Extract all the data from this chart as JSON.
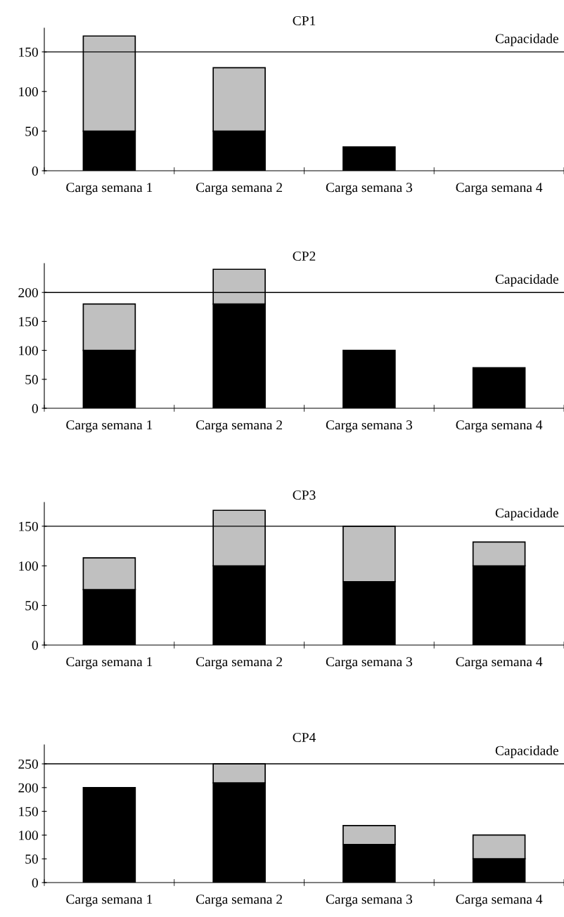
{
  "chart_data": [
    {
      "type": "bar",
      "title": "CP1",
      "stacked": true,
      "categories": [
        "Carga semana 1",
        "Carga semana 2",
        "Carga semana 3",
        "Carga semana 4"
      ],
      "series": [
        {
          "color": "#000000",
          "values": [
            50,
            50,
            30,
            null
          ]
        },
        {
          "color": "#c0c0c0",
          "values": [
            120,
            80,
            null,
            null
          ]
        }
      ],
      "ylim": [
        0,
        180
      ],
      "yticks": [
        0,
        50,
        100,
        150
      ],
      "grid": false,
      "legend": false,
      "ref_lines": [
        {
          "axis": "y",
          "value": 150,
          "label": "Capacidade",
          "color": "#000000"
        }
      ]
    },
    {
      "type": "bar",
      "title": "CP2",
      "stacked": true,
      "categories": [
        "Carga semana 1",
        "Carga semana 2",
        "Carga semana 3",
        "Carga semana 4"
      ],
      "series": [
        {
          "color": "#000000",
          "values": [
            100,
            180,
            100,
            70
          ]
        },
        {
          "color": "#c0c0c0",
          "values": [
            80,
            60,
            null,
            null
          ]
        }
      ],
      "ylim": [
        0,
        250
      ],
      "yticks": [
        0,
        50,
        100,
        150,
        200
      ],
      "grid": false,
      "legend": false,
      "ref_lines": [
        {
          "axis": "y",
          "value": 200,
          "label": "Capacidade",
          "color": "#000000"
        }
      ]
    },
    {
      "type": "bar",
      "title": "CP3",
      "stacked": true,
      "categories": [
        "Carga semana 1",
        "Carga semana 2",
        "Carga semana 3",
        "Carga semana 4"
      ],
      "series": [
        {
          "color": "#000000",
          "values": [
            70,
            100,
            80,
            100
          ]
        },
        {
          "color": "#c0c0c0",
          "values": [
            40,
            70,
            70,
            30
          ]
        }
      ],
      "ylim": [
        0,
        180
      ],
      "yticks": [
        0,
        50,
        100,
        150
      ],
      "grid": false,
      "legend": false,
      "ref_lines": [
        {
          "axis": "y",
          "value": 150,
          "label": "Capacidade",
          "color": "#000000"
        }
      ]
    },
    {
      "type": "bar",
      "title": "CP4",
      "stacked": true,
      "categories": [
        "Carga semana 1",
        "Carga semana 2",
        "Carga semana 3",
        "Carga semana 4"
      ],
      "series": [
        {
          "color": "#000000",
          "values": [
            200,
            210,
            80,
            50
          ]
        },
        {
          "color": "#c0c0c0",
          "values": [
            null,
            40,
            40,
            50
          ]
        }
      ],
      "ylim": [
        0,
        290
      ],
      "yticks": [
        0,
        50,
        100,
        150,
        200,
        250
      ],
      "grid": false,
      "legend": false,
      "ref_lines": [
        {
          "axis": "y",
          "value": 250,
          "label": "Capacidade",
          "color": "#000000"
        }
      ]
    }
  ]
}
